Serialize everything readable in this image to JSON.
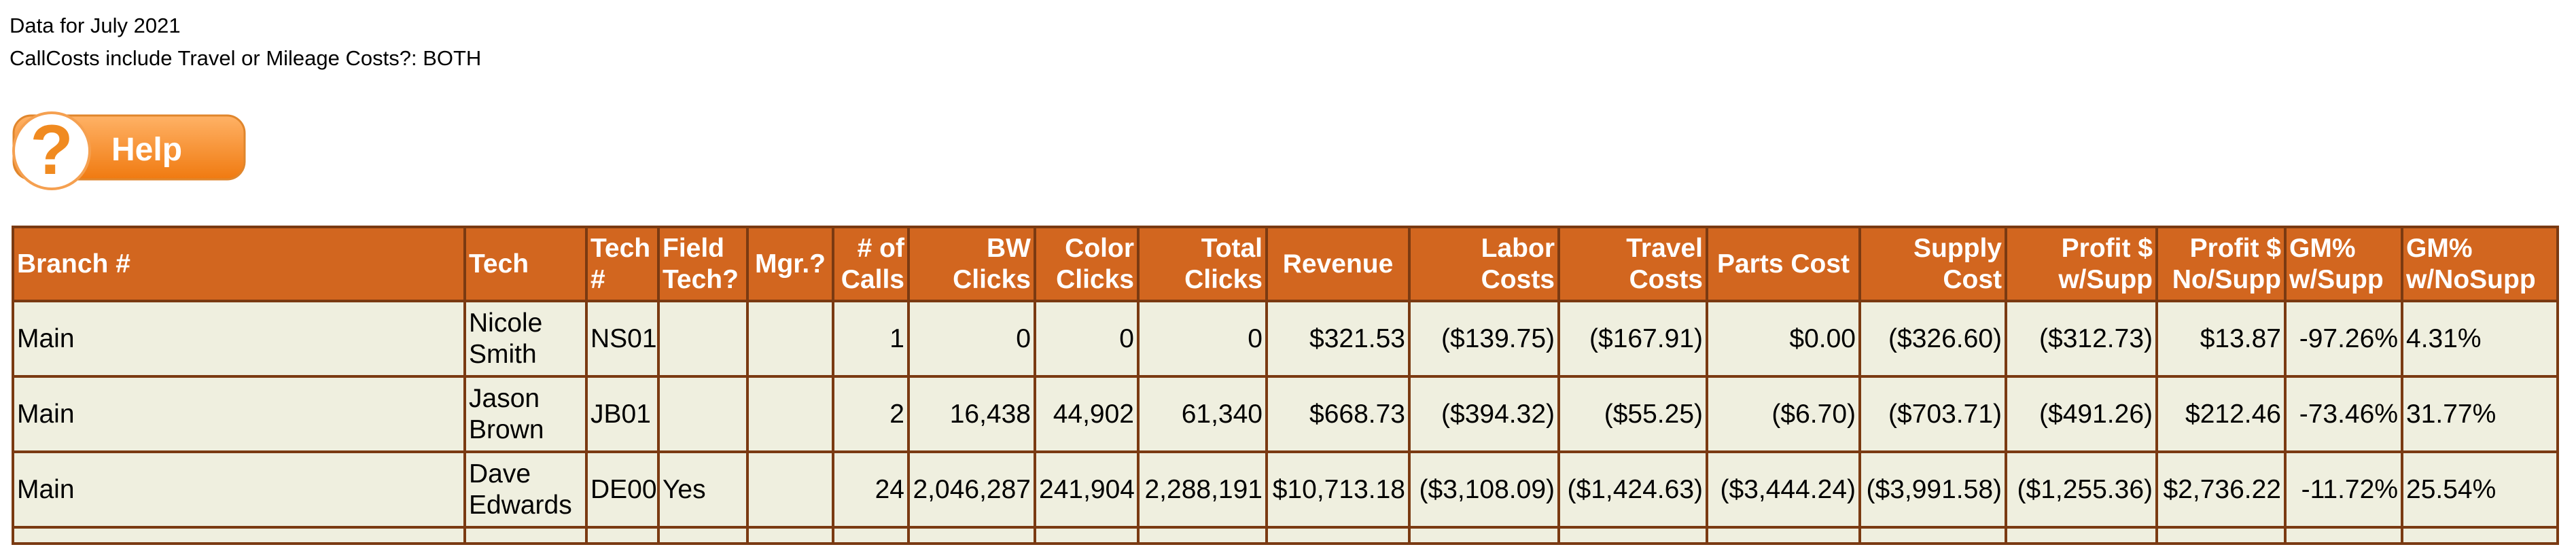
{
  "header": {
    "lines": [
      "Data for July 2021",
      "CallCosts include Travel or Mileage Costs?: BOTH"
    ]
  },
  "help": {
    "label": "Help"
  },
  "table": {
    "columns": [
      "Branch #",
      "Tech",
      "Tech #",
      "Field Tech?",
      "Mgr.?",
      "# of Calls",
      "BW Clicks",
      "Color Clicks",
      "Total Clicks",
      "Revenue",
      "Labor Costs",
      "Travel Costs",
      "Parts Cost",
      "Supply Cost",
      "Profit $ w/Supp",
      "Profit $ No/Supp",
      "GM% w/Supp",
      "GM% w/NoSupp"
    ],
    "rows": [
      [
        "Main",
        "Nicole Smith",
        "NS01",
        "",
        "",
        "1",
        "0",
        "0",
        "0",
        "$321.53",
        "($139.75)",
        "($167.91)",
        "$0.00",
        "($326.60)",
        "($312.73)",
        "$13.87",
        "-97.26%",
        "4.31%"
      ],
      [
        "Main",
        "Jason Brown",
        "JB01",
        "",
        "",
        "2",
        "16,438",
        "44,902",
        "61,340",
        "$668.73",
        "($394.32)",
        "($55.25)",
        "($6.70)",
        "($703.71)",
        "($491.26)",
        "$212.46",
        "-73.46%",
        "31.77%"
      ],
      [
        "Main",
        "Dave Edwards",
        "DE00",
        "Yes",
        "",
        "24",
        "2,046,287",
        "241,904",
        "2,288,191",
        "$10,713.18",
        "($3,108.09)",
        "($1,424.63)",
        "($3,444.24)",
        "($3,991.58)",
        "($1,255.36)",
        "$2,736.22",
        "-11.72%",
        "25.54%"
      ]
    ]
  }
}
